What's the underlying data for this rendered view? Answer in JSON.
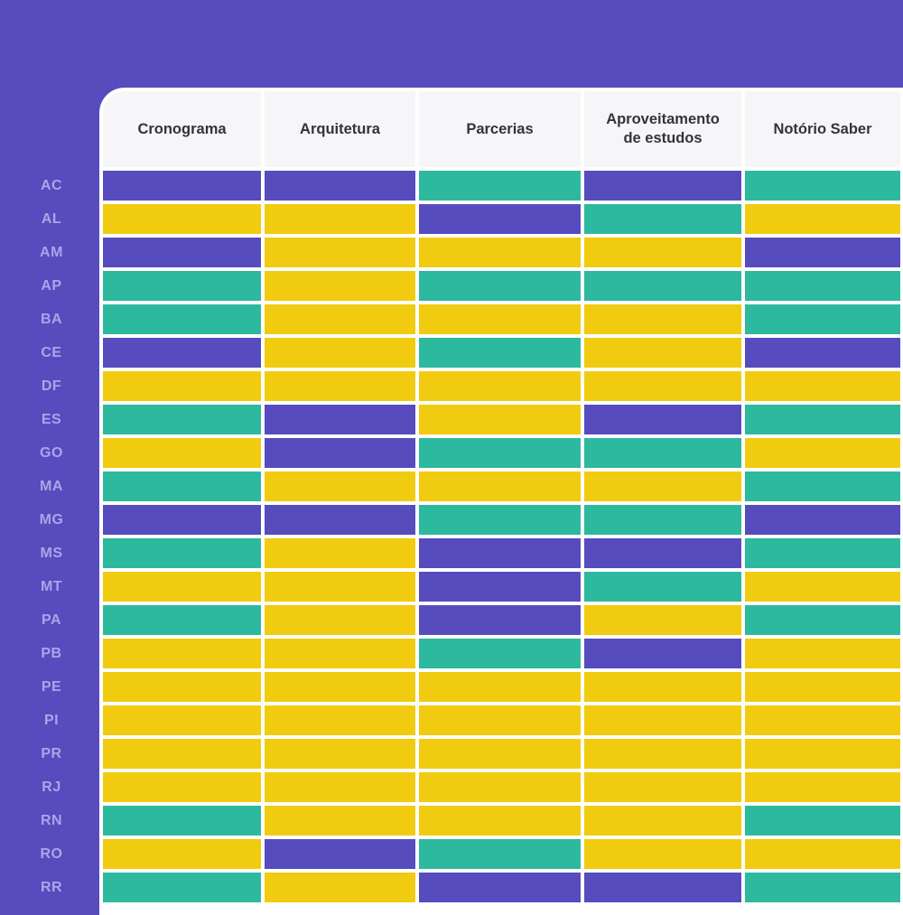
{
  "palette": {
    "background": "#564CBE",
    "card": "#FFFFFF",
    "header_bg": "#F6F6F8",
    "header_text": "#34323A",
    "row_label_text": "#ACA4E8",
    "cell_gap": "#FFFFFF"
  },
  "chart_data": {
    "type": "heatmap",
    "columns": [
      "Cronograma",
      "Arquitetura",
      "Parcerias",
      "Aproveitamento de estudos",
      "Notório Saber"
    ],
    "rows": [
      "AC",
      "AL",
      "AM",
      "AP",
      "BA",
      "CE",
      "DF",
      "ES",
      "GO",
      "MA",
      "MG",
      "MS",
      "MT",
      "PA",
      "PB",
      "PE",
      "PI",
      "PR",
      "RJ",
      "RN",
      "RO",
      "RR"
    ],
    "values": [
      [
        "purple",
        "purple",
        "teal",
        "purple",
        "teal"
      ],
      [
        "yellow",
        "yellow",
        "purple",
        "teal",
        "yellow"
      ],
      [
        "purple",
        "yellow",
        "yellow",
        "yellow",
        "purple"
      ],
      [
        "teal",
        "yellow",
        "teal",
        "teal",
        "teal"
      ],
      [
        "teal",
        "yellow",
        "yellow",
        "yellow",
        "teal"
      ],
      [
        "purple",
        "yellow",
        "teal",
        "yellow",
        "purple"
      ],
      [
        "yellow",
        "yellow",
        "yellow",
        "yellow",
        "yellow"
      ],
      [
        "teal",
        "purple",
        "yellow",
        "purple",
        "teal"
      ],
      [
        "yellow",
        "purple",
        "teal",
        "teal",
        "yellow"
      ],
      [
        "teal",
        "yellow",
        "yellow",
        "yellow",
        "teal"
      ],
      [
        "purple",
        "purple",
        "teal",
        "teal",
        "purple"
      ],
      [
        "teal",
        "yellow",
        "purple",
        "purple",
        "teal"
      ],
      [
        "yellow",
        "yellow",
        "purple",
        "teal",
        "yellow"
      ],
      [
        "teal",
        "yellow",
        "purple",
        "yellow",
        "teal"
      ],
      [
        "yellow",
        "yellow",
        "teal",
        "purple",
        "yellow"
      ],
      [
        "yellow",
        "yellow",
        "yellow",
        "yellow",
        "yellow"
      ],
      [
        "yellow",
        "yellow",
        "yellow",
        "yellow",
        "yellow"
      ],
      [
        "yellow",
        "yellow",
        "yellow",
        "yellow",
        "yellow"
      ],
      [
        "yellow",
        "yellow",
        "yellow",
        "yellow",
        "yellow"
      ],
      [
        "teal",
        "yellow",
        "yellow",
        "yellow",
        "teal"
      ],
      [
        "yellow",
        "purple",
        "teal",
        "yellow",
        "yellow"
      ],
      [
        "teal",
        "yellow",
        "purple",
        "purple",
        "teal"
      ]
    ],
    "cell_colors": {
      "purple": "#564CBE",
      "teal": "#2DB99E",
      "yellow": "#F1CB10"
    },
    "legend_position": "none",
    "grid": "white-gaps"
  }
}
